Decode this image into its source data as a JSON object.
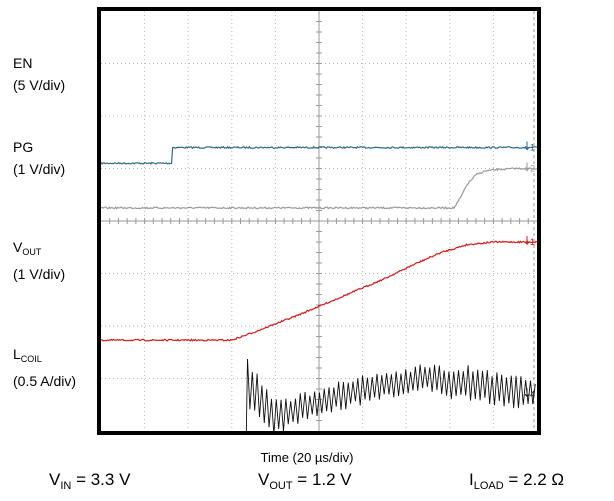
{
  "chart_data": {
    "type": "line",
    "title": "",
    "xlabel": "Time (20 µs/div)",
    "ylabel": "",
    "x_divisions": 10,
    "y_divisions": 8,
    "time_per_div_us": 20,
    "grid": true,
    "series": [
      {
        "name": "EN",
        "scale": "(5 V/div)",
        "color": "#2f6b86",
        "marker": "1",
        "points": [
          [
            0,
            2.9
          ],
          [
            16.3,
            2.9
          ],
          [
            16.3,
            2.6
          ],
          [
            100,
            2.6
          ]
        ]
      },
      {
        "name": "PG",
        "scale": "(1 V/div)",
        "color": "#9a9a9a",
        "marker": "2",
        "points": [
          [
            0,
            3.75
          ],
          [
            81,
            3.75
          ],
          [
            82.5,
            3.55
          ],
          [
            84,
            3.3
          ],
          [
            86,
            3.12
          ],
          [
            88,
            3.05
          ],
          [
            91,
            3.02
          ],
          [
            95,
            3.0
          ],
          [
            100,
            3.0
          ]
        ]
      },
      {
        "name": "VOUT",
        "name_main": "V",
        "name_sub": "OUT",
        "scale": "(1 V/div)",
        "color": "#d61a1a",
        "marker": "1",
        "points": [
          [
            0,
            6.27
          ],
          [
            30,
            6.27
          ],
          [
            35,
            6.12
          ],
          [
            45,
            5.8
          ],
          [
            55,
            5.45
          ],
          [
            65,
            5.1
          ],
          [
            72,
            4.82
          ],
          [
            78,
            4.6
          ],
          [
            84,
            4.45
          ],
          [
            90,
            4.4
          ],
          [
            100,
            4.4
          ]
        ]
      },
      {
        "name": "LCOIL",
        "name_main": "L",
        "name_sub": "COIL",
        "scale": "(0.5 A/div)",
        "color": "#111111",
        "marker": "4",
        "points": [
          [
            0,
            8.7
          ],
          [
            33.2,
            8.7
          ],
          [
            33.6,
            7.1
          ],
          [
            40,
            7.75
          ],
          [
            50,
            7.45
          ],
          [
            60,
            7.22
          ],
          [
            70,
            7.05
          ],
          [
            75,
            6.98
          ],
          [
            80,
            7.1
          ],
          [
            85,
            7.08
          ],
          [
            90,
            7.2
          ],
          [
            95,
            7.25
          ],
          [
            100,
            7.3
          ]
        ],
        "ripple_start": 33.6,
        "ripple_amplitude": [
          [
            33.6,
            0.8
          ],
          [
            42,
            0.5
          ],
          [
            70,
            0.42
          ],
          [
            85,
            0.55
          ],
          [
            100,
            0.5
          ]
        ]
      }
    ]
  },
  "conditions": {
    "vin": {
      "main": "V",
      "sub": "IN",
      "value": " = 3.3 V"
    },
    "vout": {
      "main": "V",
      "sub": "OUT",
      "value": " = 1.2 V"
    },
    "iload": {
      "main": "I",
      "sub": "LOAD",
      "value": " = 2.2 Ω"
    }
  }
}
